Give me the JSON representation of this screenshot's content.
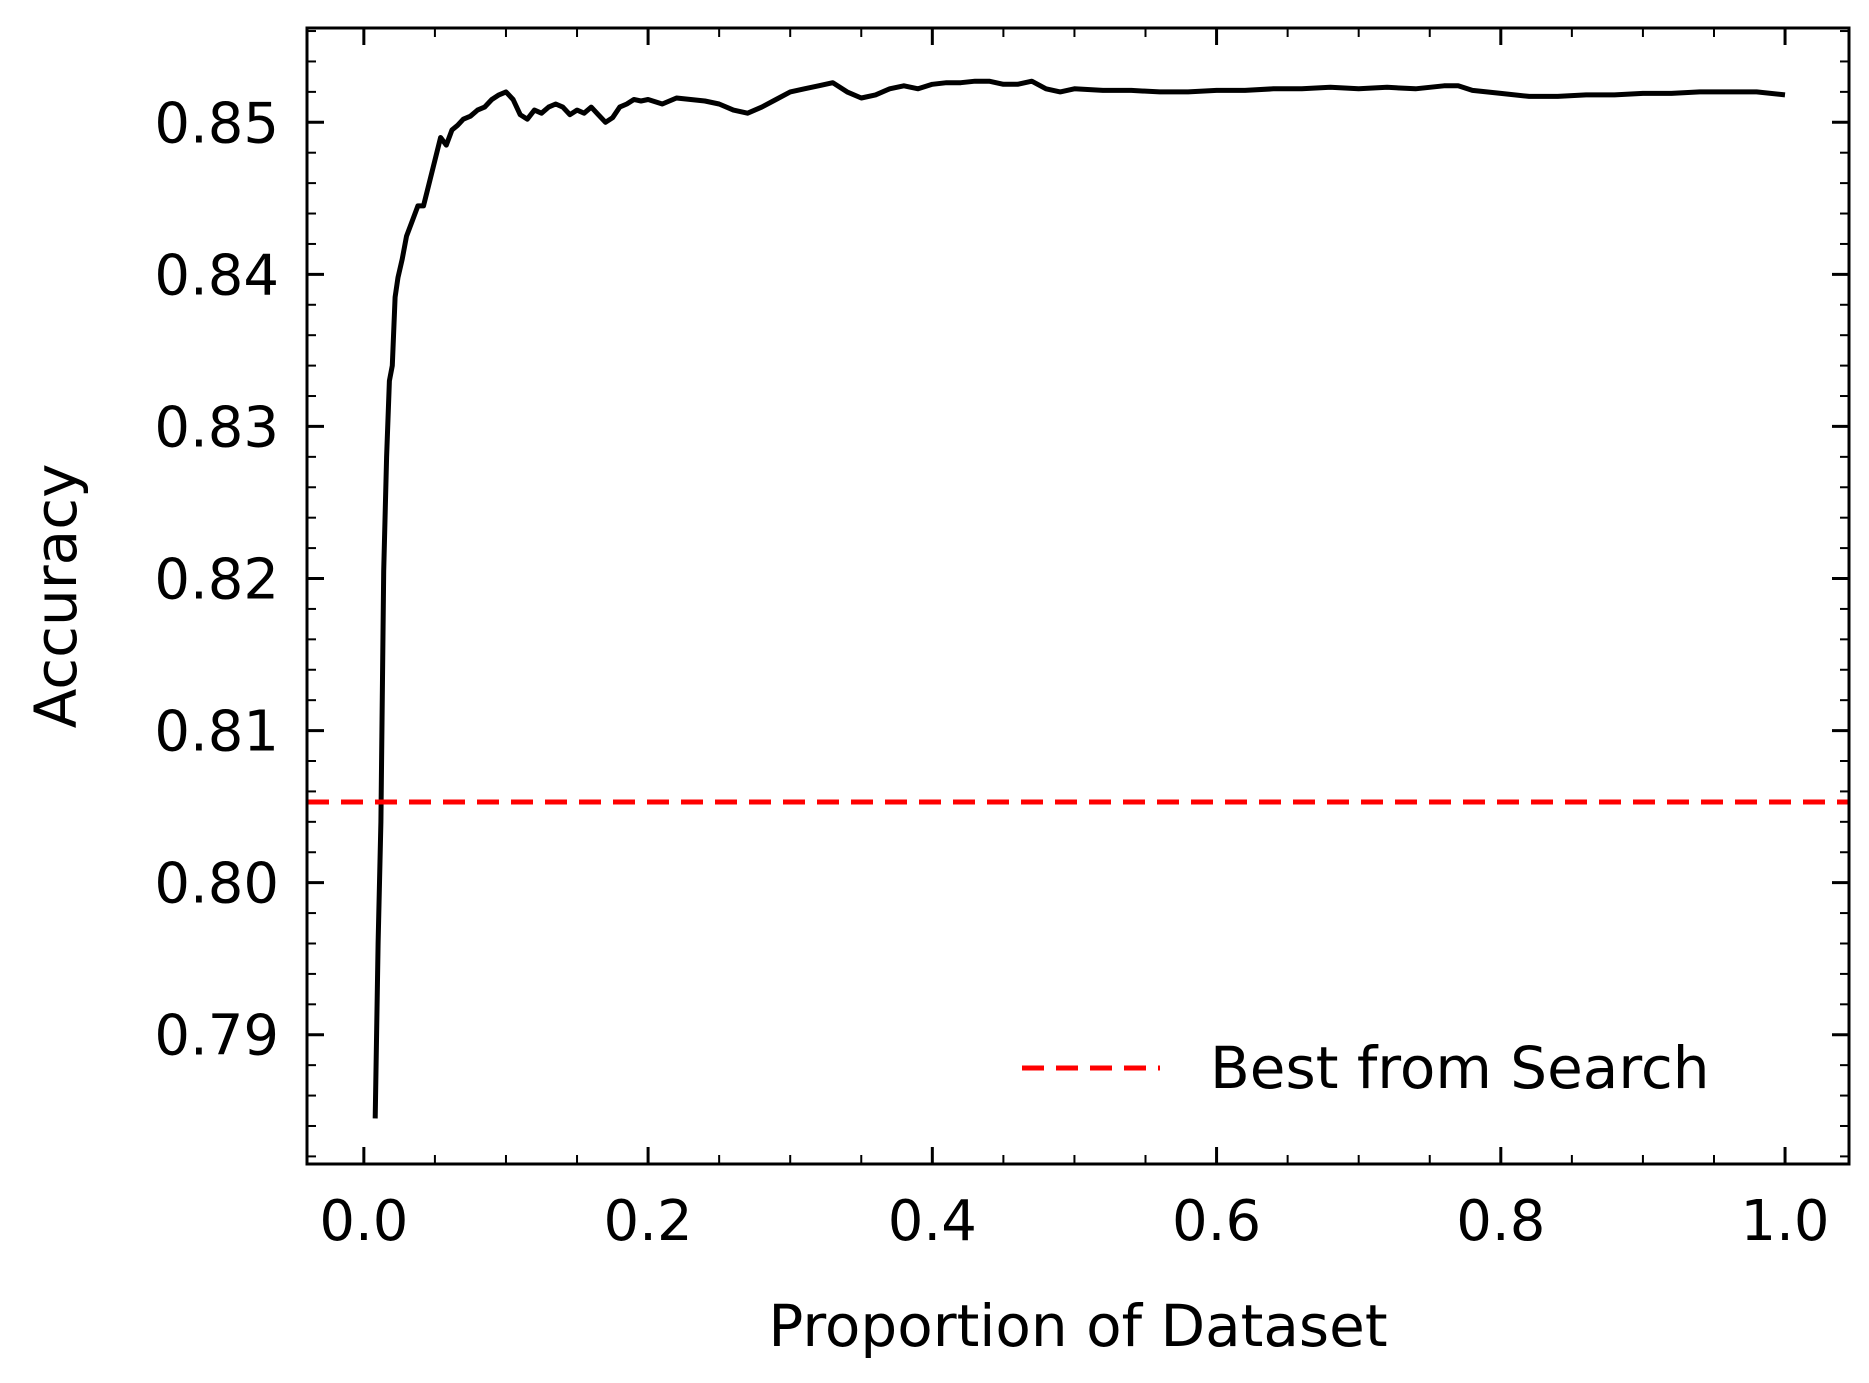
{
  "chart_data": {
    "type": "line",
    "title": "",
    "xlabel": "Proportion of Dataset",
    "ylabel": "Accuracy",
    "xlim": [
      -0.04,
      1.045
    ],
    "ylim": [
      0.7815,
      0.8562
    ],
    "x_ticks": [
      0.0,
      0.2,
      0.4,
      0.6,
      0.8,
      1.0
    ],
    "x_tick_labels": [
      "0.0",
      "0.2",
      "0.4",
      "0.6",
      "0.8",
      "1.0"
    ],
    "y_ticks": [
      0.79,
      0.8,
      0.81,
      0.82,
      0.83,
      0.84,
      0.85
    ],
    "y_tick_labels": [
      "0.79",
      "0.80",
      "0.81",
      "0.82",
      "0.83",
      "0.84",
      "0.85"
    ],
    "grid": false,
    "legend_position": "lower-right",
    "series": [
      {
        "color": "#000000",
        "style": "solid",
        "x": [
          0.008,
          0.01,
          0.012,
          0.014,
          0.016,
          0.018,
          0.02,
          0.022,
          0.024,
          0.027,
          0.03,
          0.034,
          0.038,
          0.042,
          0.046,
          0.05,
          0.054,
          0.058,
          0.062,
          0.066,
          0.07,
          0.075,
          0.08,
          0.085,
          0.09,
          0.095,
          0.1,
          0.105,
          0.11,
          0.115,
          0.12,
          0.125,
          0.13,
          0.135,
          0.14,
          0.145,
          0.15,
          0.155,
          0.16,
          0.165,
          0.17,
          0.175,
          0.18,
          0.185,
          0.19,
          0.195,
          0.2,
          0.21,
          0.22,
          0.23,
          0.24,
          0.25,
          0.26,
          0.27,
          0.28,
          0.29,
          0.3,
          0.31,
          0.32,
          0.33,
          0.34,
          0.35,
          0.36,
          0.37,
          0.38,
          0.39,
          0.4,
          0.41,
          0.42,
          0.43,
          0.44,
          0.45,
          0.46,
          0.47,
          0.48,
          0.49,
          0.5,
          0.52,
          0.54,
          0.56,
          0.58,
          0.6,
          0.62,
          0.64,
          0.66,
          0.68,
          0.7,
          0.72,
          0.74,
          0.76,
          0.77,
          0.78,
          0.8,
          0.82,
          0.84,
          0.86,
          0.88,
          0.9,
          0.92,
          0.94,
          0.96,
          0.98,
          1.0
        ],
        "y": [
          0.7845,
          0.796,
          0.804,
          0.8205,
          0.828,
          0.833,
          0.834,
          0.8385,
          0.8398,
          0.841,
          0.8425,
          0.8435,
          0.8445,
          0.8445,
          0.846,
          0.8475,
          0.849,
          0.8485,
          0.8495,
          0.8498,
          0.8502,
          0.8504,
          0.8508,
          0.851,
          0.8515,
          0.8518,
          0.852,
          0.8515,
          0.8505,
          0.8502,
          0.8508,
          0.8506,
          0.851,
          0.8512,
          0.851,
          0.8505,
          0.8508,
          0.8506,
          0.851,
          0.8505,
          0.85,
          0.8503,
          0.851,
          0.8512,
          0.8515,
          0.8514,
          0.8515,
          0.8512,
          0.8516,
          0.8515,
          0.8514,
          0.8512,
          0.8508,
          0.8506,
          0.851,
          0.8515,
          0.852,
          0.8522,
          0.8524,
          0.8526,
          0.852,
          0.8516,
          0.8518,
          0.8522,
          0.8524,
          0.8522,
          0.8525,
          0.8526,
          0.8526,
          0.8527,
          0.8527,
          0.8525,
          0.8525,
          0.8527,
          0.8522,
          0.852,
          0.8522,
          0.8521,
          0.8521,
          0.852,
          0.852,
          0.8521,
          0.8521,
          0.8522,
          0.8522,
          0.8523,
          0.8522,
          0.8523,
          0.8522,
          0.8524,
          0.8524,
          0.8521,
          0.8519,
          0.8517,
          0.8517,
          0.8518,
          0.8518,
          0.8519,
          0.8519,
          0.852,
          0.852,
          0.852,
          0.8518
        ]
      },
      {
        "name": "Best from Search",
        "color": "#ff0000",
        "style": "dashed",
        "hline": 0.8053
      }
    ]
  }
}
